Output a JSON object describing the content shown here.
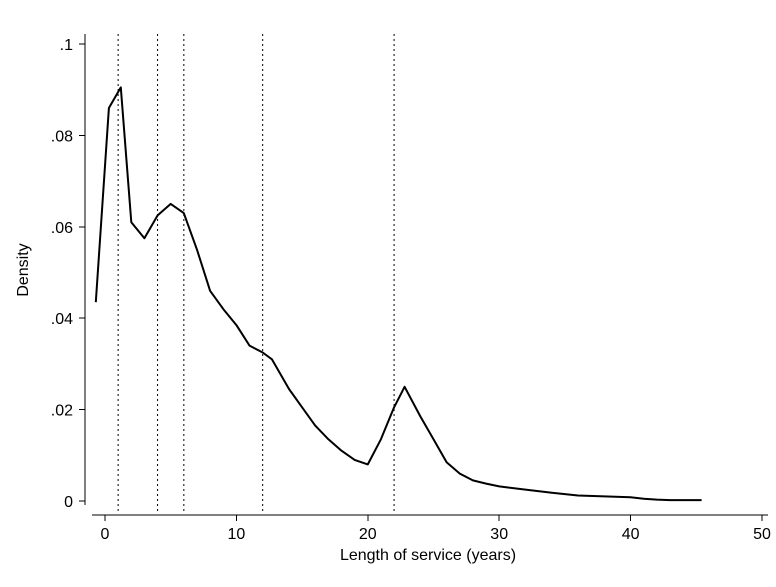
{
  "chart_data": {
    "type": "line",
    "title": "",
    "xlabel": "Length of service (years)",
    "ylabel": "Density",
    "xlim": [
      -2,
      50
    ],
    "ylim": [
      0,
      0.1
    ],
    "x_ticks": [
      0,
      10,
      20,
      30,
      40,
      50
    ],
    "x_tick_labels": [
      "0",
      "10",
      "20",
      "30",
      "40",
      "50"
    ],
    "y_ticks": [
      0,
      0.02,
      0.04,
      0.06,
      0.08,
      0.1
    ],
    "y_tick_labels": [
      "0",
      ".02",
      ".04",
      ".06",
      ".08",
      ".1"
    ],
    "grid": false,
    "reference_lines_x": [
      1,
      4,
      6,
      12,
      22
    ],
    "series": [
      {
        "x": [
          -0.7,
          0.3,
          1.2,
          2.0,
          3.0,
          4.0,
          5.0,
          6.0,
          7.0,
          8.0,
          9.0,
          10.0,
          11.0,
          12.0,
          12.7,
          14.0,
          15.0,
          16.0,
          17.0,
          18.0,
          19.0,
          20.0,
          21.0,
          22.0,
          22.8,
          24.0,
          25.0,
          26.0,
          27.0,
          28.0,
          29.0,
          30.0,
          32.0,
          34.0,
          36.0,
          38.0,
          40.0,
          41.0,
          42.0,
          43.0,
          45.4
        ],
        "y": [
          0.0435,
          0.086,
          0.0905,
          0.061,
          0.0575,
          0.0625,
          0.065,
          0.063,
          0.055,
          0.046,
          0.042,
          0.0385,
          0.034,
          0.0325,
          0.031,
          0.0245,
          0.0205,
          0.0165,
          0.0135,
          0.011,
          0.009,
          0.008,
          0.0135,
          0.0205,
          0.025,
          0.0185,
          0.0135,
          0.0085,
          0.006,
          0.0045,
          0.0038,
          0.0032,
          0.0025,
          0.0018,
          0.0012,
          0.001,
          0.0008,
          0.0005,
          0.0003,
          0.0002,
          0.0002
        ]
      }
    ]
  }
}
